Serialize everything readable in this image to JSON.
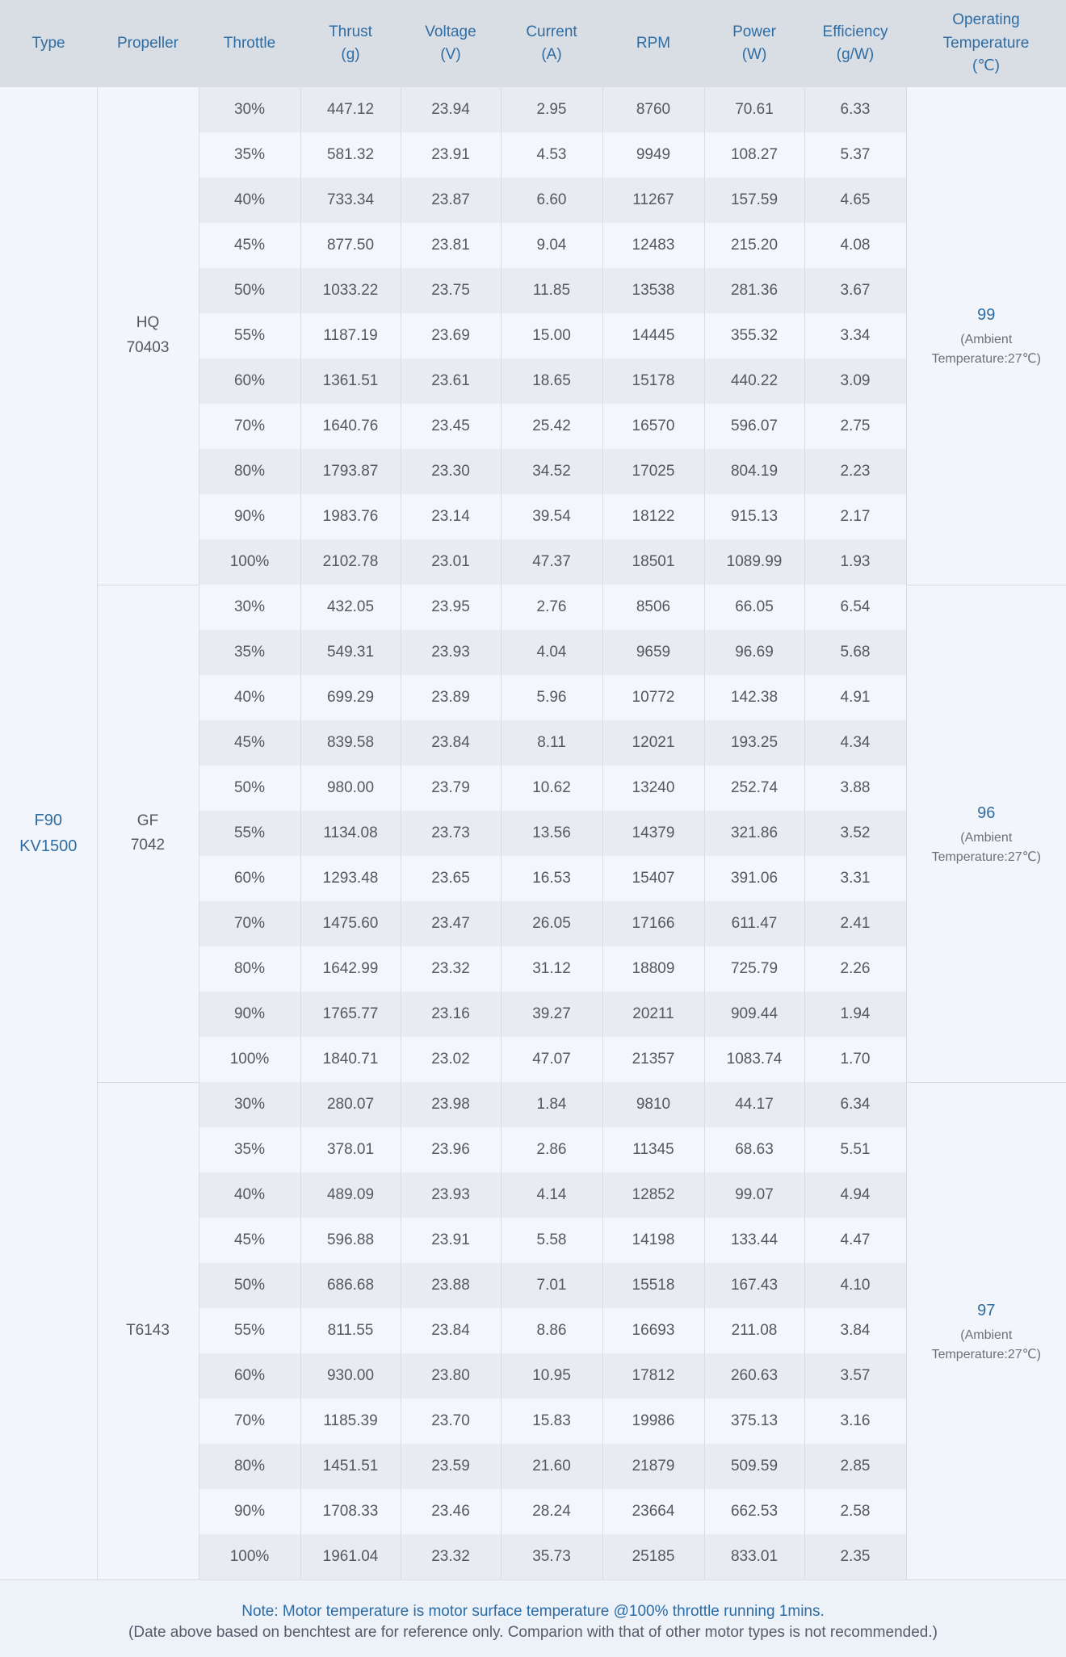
{
  "colors": {
    "accent_blue": "#2e6da4",
    "header_bg": "#d9dde4",
    "stripe_dark": "#e8ebf1",
    "stripe_light": "#f3f6fa",
    "body_text": "#55585e",
    "page_bg": "#f1f4f8"
  },
  "table": {
    "headers": [
      "Type",
      "Propeller",
      "Throttle",
      "Thrust\n(g)",
      "Voltage\n(V)",
      "Current\n(A)",
      "RPM",
      "Power\n(W)",
      "Efficiency\n(g/W)",
      "Operating\nTemperature\n(℃)"
    ],
    "type_label": "F90\nKV1500",
    "sections": [
      {
        "propeller": "HQ\n70403",
        "temperature": {
          "value": "99",
          "note": "(Ambient\nTemperature:27℃)"
        },
        "rows": [
          {
            "throttle": "30%",
            "thrust": "447.12",
            "voltage": "23.94",
            "current": "2.95",
            "rpm": "8760",
            "power": "70.61",
            "efficiency": "6.33"
          },
          {
            "throttle": "35%",
            "thrust": "581.32",
            "voltage": "23.91",
            "current": "4.53",
            "rpm": "9949",
            "power": "108.27",
            "efficiency": "5.37"
          },
          {
            "throttle": "40%",
            "thrust": "733.34",
            "voltage": "23.87",
            "current": "6.60",
            "rpm": "11267",
            "power": "157.59",
            "efficiency": "4.65"
          },
          {
            "throttle": "45%",
            "thrust": "877.50",
            "voltage": "23.81",
            "current": "9.04",
            "rpm": "12483",
            "power": "215.20",
            "efficiency": "4.08"
          },
          {
            "throttle": "50%",
            "thrust": "1033.22",
            "voltage": "23.75",
            "current": "11.85",
            "rpm": "13538",
            "power": "281.36",
            "efficiency": "3.67"
          },
          {
            "throttle": "55%",
            "thrust": "1187.19",
            "voltage": "23.69",
            "current": "15.00",
            "rpm": "14445",
            "power": "355.32",
            "efficiency": "3.34"
          },
          {
            "throttle": "60%",
            "thrust": "1361.51",
            "voltage": "23.61",
            "current": "18.65",
            "rpm": "15178",
            "power": "440.22",
            "efficiency": "3.09"
          },
          {
            "throttle": "70%",
            "thrust": "1640.76",
            "voltage": "23.45",
            "current": "25.42",
            "rpm": "16570",
            "power": "596.07",
            "efficiency": "2.75"
          },
          {
            "throttle": "80%",
            "thrust": "1793.87",
            "voltage": "23.30",
            "current": "34.52",
            "rpm": "17025",
            "power": "804.19",
            "efficiency": "2.23"
          },
          {
            "throttle": "90%",
            "thrust": "1983.76",
            "voltage": "23.14",
            "current": "39.54",
            "rpm": "18122",
            "power": "915.13",
            "efficiency": "2.17"
          },
          {
            "throttle": "100%",
            "thrust": "2102.78",
            "voltage": "23.01",
            "current": "47.37",
            "rpm": "18501",
            "power": "1089.99",
            "efficiency": "1.93"
          }
        ]
      },
      {
        "propeller": "GF\n7042",
        "temperature": {
          "value": "96",
          "note": "(Ambient\nTemperature:27℃)"
        },
        "rows": [
          {
            "throttle": "30%",
            "thrust": "432.05",
            "voltage": "23.95",
            "current": "2.76",
            "rpm": "8506",
            "power": "66.05",
            "efficiency": "6.54"
          },
          {
            "throttle": "35%",
            "thrust": "549.31",
            "voltage": "23.93",
            "current": "4.04",
            "rpm": "9659",
            "power": "96.69",
            "efficiency": "5.68"
          },
          {
            "throttle": "40%",
            "thrust": "699.29",
            "voltage": "23.89",
            "current": "5.96",
            "rpm": "10772",
            "power": "142.38",
            "efficiency": "4.91"
          },
          {
            "throttle": "45%",
            "thrust": "839.58",
            "voltage": "23.84",
            "current": "8.11",
            "rpm": "12021",
            "power": "193.25",
            "efficiency": "4.34"
          },
          {
            "throttle": "50%",
            "thrust": "980.00",
            "voltage": "23.79",
            "current": "10.62",
            "rpm": "13240",
            "power": "252.74",
            "efficiency": "3.88"
          },
          {
            "throttle": "55%",
            "thrust": "1134.08",
            "voltage": "23.73",
            "current": "13.56",
            "rpm": "14379",
            "power": "321.86",
            "efficiency": "3.52"
          },
          {
            "throttle": "60%",
            "thrust": "1293.48",
            "voltage": "23.65",
            "current": "16.53",
            "rpm": "15407",
            "power": "391.06",
            "efficiency": "3.31"
          },
          {
            "throttle": "70%",
            "thrust": "1475.60",
            "voltage": "23.47",
            "current": "26.05",
            "rpm": "17166",
            "power": "611.47",
            "efficiency": "2.41"
          },
          {
            "throttle": "80%",
            "thrust": "1642.99",
            "voltage": "23.32",
            "current": "31.12",
            "rpm": "18809",
            "power": "725.79",
            "efficiency": "2.26"
          },
          {
            "throttle": "90%",
            "thrust": "1765.77",
            "voltage": "23.16",
            "current": "39.27",
            "rpm": "20211",
            "power": "909.44",
            "efficiency": "1.94"
          },
          {
            "throttle": "100%",
            "thrust": "1840.71",
            "voltage": "23.02",
            "current": "47.07",
            "rpm": "21357",
            "power": "1083.74",
            "efficiency": "1.70"
          }
        ]
      },
      {
        "propeller": "T6143",
        "temperature": {
          "value": "97",
          "note": "(Ambient\nTemperature:27℃)"
        },
        "rows": [
          {
            "throttle": "30%",
            "thrust": "280.07",
            "voltage": "23.98",
            "current": "1.84",
            "rpm": "9810",
            "power": "44.17",
            "efficiency": "6.34"
          },
          {
            "throttle": "35%",
            "thrust": "378.01",
            "voltage": "23.96",
            "current": "2.86",
            "rpm": "11345",
            "power": "68.63",
            "efficiency": "5.51"
          },
          {
            "throttle": "40%",
            "thrust": "489.09",
            "voltage": "23.93",
            "current": "4.14",
            "rpm": "12852",
            "power": "99.07",
            "efficiency": "4.94"
          },
          {
            "throttle": "45%",
            "thrust": "596.88",
            "voltage": "23.91",
            "current": "5.58",
            "rpm": "14198",
            "power": "133.44",
            "efficiency": "4.47"
          },
          {
            "throttle": "50%",
            "thrust": "686.68",
            "voltage": "23.88",
            "current": "7.01",
            "rpm": "15518",
            "power": "167.43",
            "efficiency": "4.10"
          },
          {
            "throttle": "55%",
            "thrust": "811.55",
            "voltage": "23.84",
            "current": "8.86",
            "rpm": "16693",
            "power": "211.08",
            "efficiency": "3.84"
          },
          {
            "throttle": "60%",
            "thrust": "930.00",
            "voltage": "23.80",
            "current": "10.95",
            "rpm": "17812",
            "power": "260.63",
            "efficiency": "3.57"
          },
          {
            "throttle": "70%",
            "thrust": "1185.39",
            "voltage": "23.70",
            "current": "15.83",
            "rpm": "19986",
            "power": "375.13",
            "efficiency": "3.16"
          },
          {
            "throttle": "80%",
            "thrust": "1451.51",
            "voltage": "23.59",
            "current": "21.60",
            "rpm": "21879",
            "power": "509.59",
            "efficiency": "2.85"
          },
          {
            "throttle": "90%",
            "thrust": "1708.33",
            "voltage": "23.46",
            "current": "28.24",
            "rpm": "23664",
            "power": "662.53",
            "efficiency": "2.58"
          },
          {
            "throttle": "100%",
            "thrust": "1961.04",
            "voltage": "23.32",
            "current": "35.73",
            "rpm": "25185",
            "power": "833.01",
            "efficiency": "2.35"
          }
        ]
      }
    ]
  },
  "footer": {
    "note1": "Note: Motor temperature is motor surface temperature @100% throttle running 1mins.",
    "note2": "(Date above based on benchtest are for reference only. Comparion with that of other motor types is not recommended.)"
  }
}
